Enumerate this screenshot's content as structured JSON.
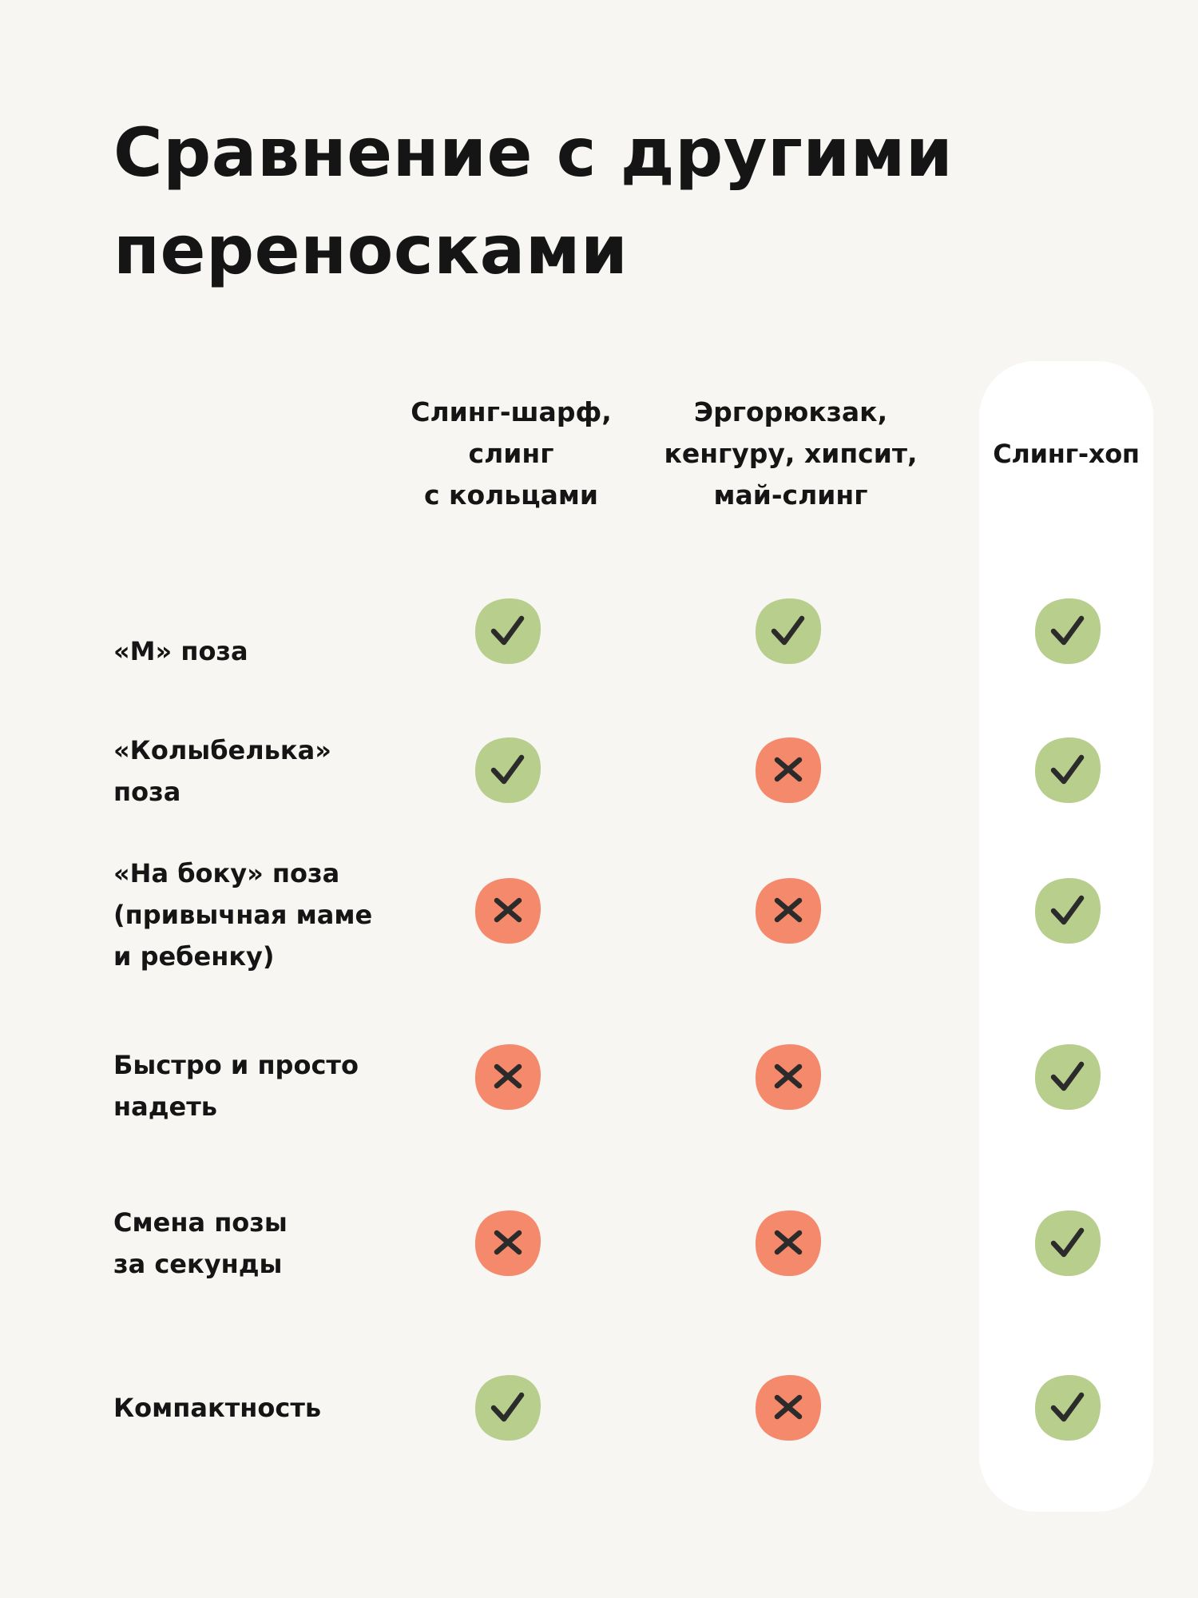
{
  "title": "Сравнение с другими\nпереносками",
  "columns": [
    {
      "label": "Слинг-шарф,\nслинг\nс кольцами"
    },
    {
      "label": "Эргорюкзак,\nкенгуру, хипсит,\nмай-слинг"
    },
    {
      "label": "Слинг-хоп"
    }
  ],
  "rows": [
    {
      "label": "«М» поза",
      "values": [
        "check-icon",
        "check-icon",
        "check-icon"
      ]
    },
    {
      "label": "«Колыбелька»\nпоза",
      "values": [
        "check-icon",
        "cross-icon",
        "check-icon"
      ]
    },
    {
      "label": "«На боку» поза\n(привычная маме\nи ребенку)",
      "values": [
        "cross-icon",
        "cross-icon",
        "check-icon"
      ]
    },
    {
      "label": "Быстро и просто\nнадеть",
      "values": [
        "cross-icon",
        "cross-icon",
        "check-icon"
      ]
    },
    {
      "label": "Смена позы\nза секунды",
      "values": [
        "cross-icon",
        "cross-icon",
        "check-icon"
      ]
    },
    {
      "label": "Компактность",
      "values": [
        "check-icon",
        "cross-icon",
        "check-icon"
      ]
    }
  ],
  "colors": {
    "background": "#f7f6f2",
    "highlight_column": "#ffffff",
    "check_bg": "#b8ce8c",
    "cross_bg": "#f5896b",
    "mark_stroke": "#2b2b2b",
    "text": "#151515"
  }
}
